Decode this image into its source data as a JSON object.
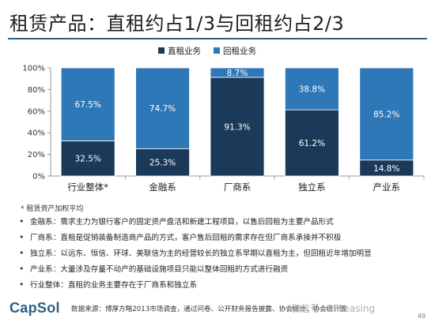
{
  "title": "租赁产品：直租约占1/3与回租约占2/3",
  "chart_data": {
    "type": "bar",
    "stacked": true,
    "categories": [
      "行业整体*",
      "金融系",
      "厂商系",
      "独立系",
      "产业系"
    ],
    "series": [
      {
        "name": "直租业务",
        "color": "#1b3a5a",
        "values": [
          32.5,
          25.3,
          91.3,
          61.2,
          14.8
        ]
      },
      {
        "name": "回租业务",
        "color": "#2e78b8",
        "values": [
          67.5,
          74.7,
          8.7,
          38.8,
          85.2
        ]
      }
    ],
    "value_labels": [
      [
        "32.5%",
        "25.3%",
        "91.3%",
        "61.2%",
        "14.8%"
      ],
      [
        "67.5%",
        "74.7%",
        "8.7%",
        "38.8%",
        "85.2%"
      ]
    ],
    "yticks": [
      "0%",
      "20%",
      "40%",
      "60%",
      "80%",
      "100%"
    ],
    "ylim": [
      0,
      100
    ],
    "legend_position": "top-right",
    "grid": false
  },
  "footnote": "* 租赁资产加权平均",
  "bullets": [
    "金融系：需求主力为银行客户的固定资产盘活和新建工程项目，以售后回租为主要产品形式",
    "厂商系：直租是促销装备制造商产品的方式，客户售后回租的需求存在但厂商系承接并不积极",
    "独立系：以远东、恒信、环球、美联信为主的经营较长的独立系早期以直租为主，但回租近年增加明显",
    "产业系：大量涉及存量不动产的基础设施项目只能以整体回租的方式进行融资",
    "行业整体：直租的业务主要存在于厂商系和独立系"
  ],
  "footer": {
    "logo": "CapSol",
    "source": "数据来源：博厚方略2013市场调查，通过问卷、公开财务报告披露、协会统计、协会统计等",
    "watermark": "微信号: GFLeasing",
    "page": "49"
  }
}
